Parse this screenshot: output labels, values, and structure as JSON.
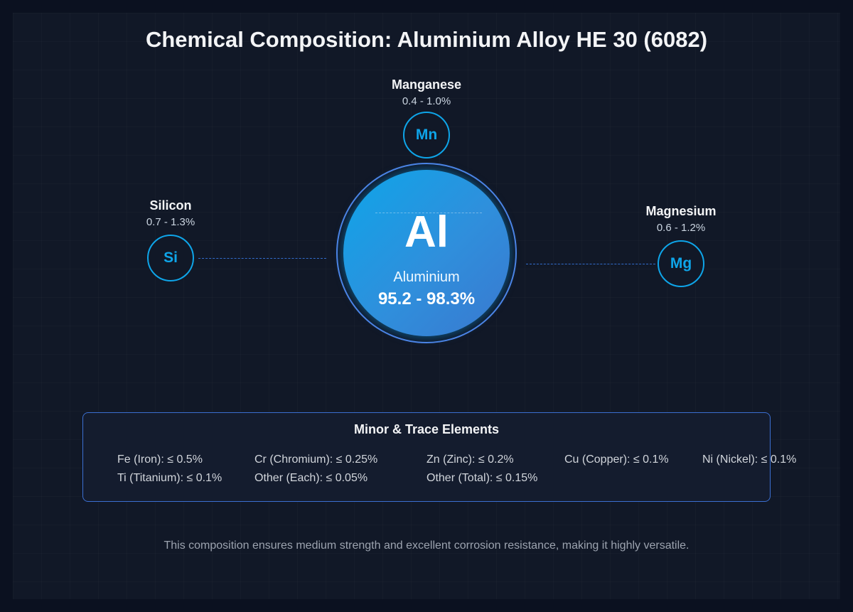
{
  "title": "Chemical Composition: Aluminium Alloy HE 30 (6082)",
  "base": {
    "symbol": "Al",
    "name": "Aluminium",
    "range": "95.2 - 98.3%"
  },
  "major": [
    {
      "symbol": "Mn",
      "name": "Manganese",
      "range": "0.4 - 1.0%"
    },
    {
      "symbol": "Si",
      "name": "Silicon",
      "range": "0.7 - 1.3%"
    },
    {
      "symbol": "Mg",
      "name": "Magnesium",
      "range": "0.6 - 1.2%"
    }
  ],
  "minor": {
    "title": "Minor & Trace Elements",
    "items": [
      "Fe (Iron): ≤ 0.5%",
      "Cr (Chromium): ≤ 0.25%",
      "Zn (Zinc): ≤ 0.2%",
      "Cu (Copper): ≤ 0.1%",
      "Ni (Nickel): ≤ 0.1%",
      "Ti (Titanium): ≤ 0.1%",
      "Other (Each): ≤ 0.05%",
      "Other (Total): ≤ 0.15%"
    ]
  },
  "footer": "This composition ensures medium strength and excellent corrosion resistance, making it highly versatile.",
  "colors": {
    "accent": "#0ea5e9",
    "background": "#111827",
    "core_gradient_start": "#0ea5e9",
    "core_gradient_end": "#3a78cf"
  }
}
